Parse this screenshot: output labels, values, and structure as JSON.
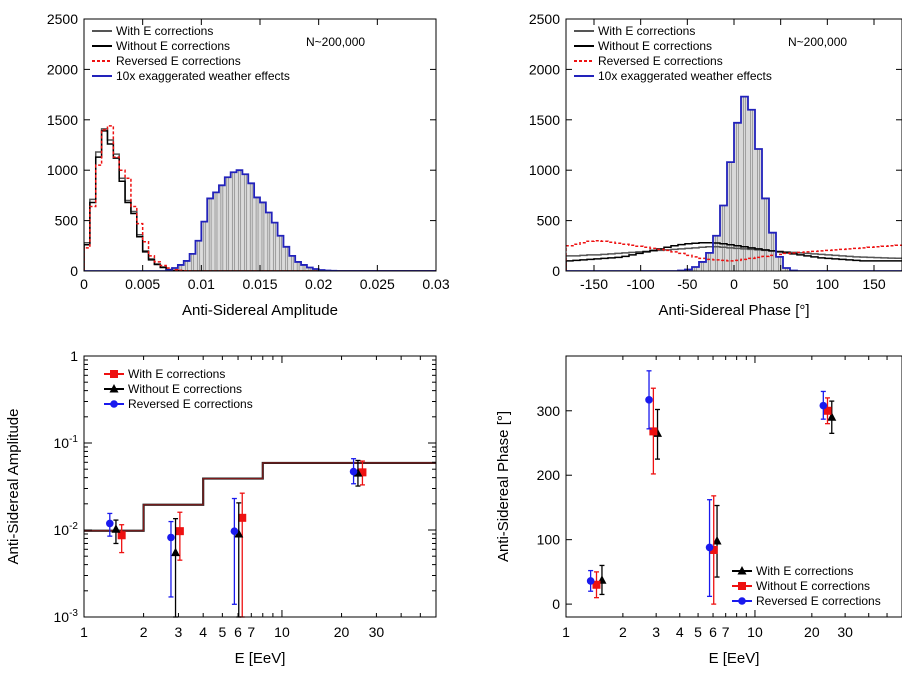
{
  "chart_data": [
    {
      "type": "histogram",
      "xlabel": "Anti-Sidereal Amplitude",
      "ylabel": "",
      "xlim": [
        0,
        0.03
      ],
      "ylim": [
        0,
        2500
      ],
      "xticks": [
        0,
        0.005,
        0.01,
        0.015,
        0.02,
        0.025,
        0.03
      ],
      "xtick_labels": [
        "0",
        "0.005",
        "0.01",
        "0.015",
        "0.02",
        "0.025",
        "0.03"
      ],
      "yticks": [
        0,
        500,
        1000,
        1500,
        2000,
        2500
      ],
      "annotation": "N~200,000",
      "legend_position": "top-left",
      "bin_width": 0.0005,
      "series": [
        {
          "name": "With E corrections",
          "color": "#555555",
          "style": "solid",
          "values": [
            280,
            710,
            1180,
            1410,
            1300,
            1160,
            920,
            700,
            590,
            360,
            200,
            120,
            70,
            40,
            15,
            5,
            3,
            0,
            0,
            0,
            0,
            0,
            0,
            0,
            0,
            0,
            0,
            0,
            0,
            0,
            0,
            0,
            0,
            0,
            0,
            0,
            0,
            0,
            0,
            0,
            0,
            0,
            0,
            0,
            0,
            0,
            0,
            0,
            0,
            0,
            0,
            0,
            0,
            0,
            0,
            0,
            0,
            0,
            0,
            0
          ]
        },
        {
          "name": "Without E corrections",
          "color": "#000000",
          "style": "solid",
          "values": [
            260,
            680,
            1130,
            1390,
            1260,
            1120,
            890,
            680,
            570,
            340,
            190,
            110,
            65,
            35,
            12,
            4,
            2,
            0,
            0,
            0,
            0,
            0,
            0,
            0,
            0,
            0,
            0,
            0,
            0,
            0,
            0,
            0,
            0,
            0,
            0,
            0,
            0,
            0,
            0,
            0,
            0,
            0,
            0,
            0,
            0,
            0,
            0,
            0,
            0,
            0,
            0,
            0,
            0,
            0,
            0,
            0,
            0,
            0,
            0,
            0
          ]
        },
        {
          "name": "Reversed E corrections",
          "color": "#ee1111",
          "style": "dashed",
          "values": [
            230,
            640,
            1050,
            1400,
            1440,
            1130,
            1000,
            920,
            640,
            470,
            290,
            150,
            90,
            55,
            30,
            12,
            6,
            2,
            0,
            0,
            0,
            0,
            0,
            0,
            0,
            0,
            0,
            0,
            0,
            0,
            0,
            0,
            0,
            0,
            0,
            0,
            0,
            0,
            0,
            0,
            0,
            0,
            0,
            0,
            0,
            0,
            0,
            0,
            0,
            0,
            0,
            0,
            0,
            0,
            0,
            0,
            0,
            0,
            0,
            0
          ]
        },
        {
          "name": "10x exaggerated weather effects",
          "color": "#2222bb",
          "style": "solid",
          "values": [
            0,
            0,
            0,
            0,
            0,
            0,
            0,
            0,
            0,
            0,
            0,
            0,
            0,
            0,
            10,
            30,
            60,
            100,
            170,
            300,
            490,
            720,
            780,
            850,
            930,
            980,
            1000,
            960,
            870,
            730,
            680,
            580,
            480,
            350,
            240,
            150,
            90,
            60,
            35,
            20,
            10,
            5,
            2,
            0,
            0,
            0,
            0,
            0,
            0,
            0,
            0,
            0,
            0,
            0,
            0,
            0,
            0,
            0,
            0,
            0
          ]
        }
      ]
    },
    {
      "type": "histogram",
      "xlabel": "Anti-Sidereal Phase [°]",
      "ylabel": "",
      "xlim": [
        -180,
        180
      ],
      "ylim": [
        0,
        2500
      ],
      "xticks": [
        -150,
        -100,
        -50,
        0,
        50,
        100,
        150
      ],
      "xtick_labels": [
        "-150",
        "-100",
        "-50",
        "0",
        "50",
        "100",
        "150"
      ],
      "yticks": [
        0,
        500,
        1000,
        1500,
        2000,
        2500
      ],
      "annotation": "N~200,000",
      "legend_position": "top-left",
      "bin_width": 7.5,
      "series": [
        {
          "name": "With E corrections",
          "color": "#555555",
          "style": "solid",
          "values": [
            150,
            150,
            155,
            160,
            160,
            165,
            170,
            175,
            180,
            185,
            190,
            195,
            200,
            205,
            210,
            215,
            220,
            225,
            230,
            235,
            240,
            240,
            235,
            230,
            225,
            220,
            215,
            210,
            205,
            200,
            195,
            190,
            185,
            180,
            175,
            170,
            165,
            160,
            155,
            150,
            145,
            140,
            138,
            135,
            133,
            130,
            128,
            126
          ]
        },
        {
          "name": "Without E corrections",
          "color": "#000000",
          "style": "solid",
          "values": [
            100,
            105,
            110,
            115,
            120,
            125,
            130,
            135,
            145,
            160,
            175,
            190,
            205,
            220,
            235,
            250,
            262,
            270,
            275,
            280,
            280,
            278,
            270,
            260,
            250,
            240,
            230,
            220,
            210,
            200,
            190,
            180,
            170,
            160,
            150,
            140,
            130,
            125,
            120,
            115,
            110,
            105,
            100,
            100,
            100,
            100,
            100,
            100
          ]
        },
        {
          "name": "Reversed E corrections",
          "color": "#ee1111",
          "style": "dashed",
          "values": [
            250,
            265,
            280,
            295,
            300,
            295,
            285,
            275,
            265,
            255,
            245,
            235,
            225,
            215,
            205,
            190,
            175,
            155,
            140,
            125,
            115,
            110,
            105,
            100,
            105,
            115,
            125,
            135,
            145,
            155,
            165,
            175,
            180,
            185,
            190,
            195,
            200,
            205,
            210,
            215,
            220,
            225,
            230,
            235,
            240,
            245,
            250,
            255
          ]
        },
        {
          "name": "10x exaggerated weather effects",
          "color": "#2222bb",
          "style": "solid",
          "values": [
            0,
            0,
            0,
            0,
            0,
            0,
            0,
            0,
            0,
            0,
            0,
            0,
            0,
            0,
            0,
            0,
            5,
            15,
            40,
            90,
            180,
            350,
            650,
            1080,
            1470,
            1730,
            1600,
            1210,
            720,
            380,
            140,
            30,
            5,
            0,
            0,
            0,
            0,
            0,
            0,
            0,
            0,
            0,
            0,
            0,
            0,
            0,
            0,
            0
          ]
        }
      ]
    },
    {
      "type": "scatter",
      "xlabel": "E [EeV]",
      "ylabel": "Anti-Sidereal Amplitude",
      "xscale": "log",
      "yscale": "log",
      "xlim": [
        1,
        60
      ],
      "ylim": [
        0.001,
        1
      ],
      "xticks": [
        1,
        2,
        3,
        4,
        5,
        6,
        7,
        10,
        20,
        30
      ],
      "xtick_labels": [
        "1",
        "2",
        "3",
        "4",
        "5",
        "6",
        "7",
        "10",
        "20",
        "30"
      ],
      "yticks": [
        0.001,
        0.01,
        0.1,
        1
      ],
      "ytick_labels": [
        {
          "base": "10",
          "exp": "-3"
        },
        {
          "base": "10",
          "exp": "-2"
        },
        {
          "base": "10",
          "exp": "-1"
        },
        {
          "base": "1",
          "exp": ""
        }
      ],
      "legend_position": "top-left",
      "step_line": {
        "color": "#8b1a1a",
        "edges": [
          1,
          2,
          4,
          8,
          60
        ],
        "values": [
          0.0098,
          0.0195,
          0.039,
          0.059
        ]
      },
      "series": [
        {
          "name": "With E corrections",
          "color": "#ee1111",
          "marker": "square",
          "points": [
            {
              "x": 1.55,
              "y": 0.0087,
              "lo": 0.0055,
              "hi": 0.0115
            },
            {
              "x": 3.05,
              "y": 0.0097,
              "lo": 0.0045,
              "hi": 0.016
            },
            {
              "x": 6.3,
              "y": 0.0138,
              "lo": 0.001,
              "hi": 0.0265
            },
            {
              "x": 25.5,
              "y": 0.046,
              "lo": 0.033,
              "hi": 0.062
            }
          ]
        },
        {
          "name": "Without E corrections",
          "color": "#000000",
          "marker": "triangle",
          "points": [
            {
              "x": 1.45,
              "y": 0.0102,
              "lo": 0.007,
              "hi": 0.013
            },
            {
              "x": 2.9,
              "y": 0.0055,
              "lo": 0.001,
              "hi": 0.0135
            },
            {
              "x": 6.05,
              "y": 0.009,
              "lo": 0.001,
              "hi": 0.0205
            },
            {
              "x": 24.2,
              "y": 0.045,
              "lo": 0.032,
              "hi": 0.063
            }
          ]
        },
        {
          "name": "Reversed E corrections",
          "color": "#1a1aee",
          "marker": "circle",
          "points": [
            {
              "x": 1.35,
              "y": 0.0119,
              "lo": 0.0085,
              "hi": 0.0155
            },
            {
              "x": 2.75,
              "y": 0.0082,
              "lo": 0.0017,
              "hi": 0.0125
            },
            {
              "x": 5.75,
              "y": 0.0097,
              "lo": 0.0014,
              "hi": 0.023
            },
            {
              "x": 23.0,
              "y": 0.047,
              "lo": 0.034,
              "hi": 0.066
            }
          ]
        }
      ]
    },
    {
      "type": "scatter",
      "xlabel": "E [EeV]",
      "ylabel": "Anti-Sidereal Phase [°]",
      "xscale": "log",
      "xlim": [
        1,
        60
      ],
      "ylim": [
        -20,
        385
      ],
      "xticks": [
        1,
        2,
        3,
        4,
        5,
        6,
        7,
        10,
        20,
        30
      ],
      "xtick_labels": [
        "1",
        "2",
        "3",
        "4",
        "5",
        "6",
        "7",
        "10",
        "20",
        "30"
      ],
      "yticks": [
        0,
        100,
        200,
        300
      ],
      "legend_position": "bottom-right",
      "series": [
        {
          "name": "With E corrections",
          "color": "#000000",
          "marker": "triangle",
          "points": [
            {
              "x": 1.55,
              "y": 37,
              "lo": 15,
              "hi": 60
            },
            {
              "x": 3.05,
              "y": 265,
              "lo": 225,
              "hi": 302
            },
            {
              "x": 6.3,
              "y": 98,
              "lo": 42,
              "hi": 153
            },
            {
              "x": 25.5,
              "y": 290,
              "lo": 265,
              "hi": 315
            }
          ]
        },
        {
          "name": "Without E corrections",
          "color": "#ee1111",
          "marker": "square",
          "points": [
            {
              "x": 1.45,
              "y": 30,
              "lo": 10,
              "hi": 50
            },
            {
              "x": 2.9,
              "y": 268,
              "lo": 202,
              "hi": 335
            },
            {
              "x": 6.05,
              "y": 84,
              "lo": 0,
              "hi": 168
            },
            {
              "x": 24.2,
              "y": 300,
              "lo": 280,
              "hi": 320
            }
          ]
        },
        {
          "name": "Reversed E corrections",
          "color": "#1a1aee",
          "marker": "circle",
          "points": [
            {
              "x": 1.35,
              "y": 36,
              "lo": 20,
              "hi": 52
            },
            {
              "x": 2.75,
              "y": 317,
              "lo": 272,
              "hi": 362
            },
            {
              "x": 5.75,
              "y": 88,
              "lo": 12,
              "hi": 162
            },
            {
              "x": 23.0,
              "y": 308,
              "lo": 287,
              "hi": 330
            }
          ]
        }
      ]
    }
  ]
}
